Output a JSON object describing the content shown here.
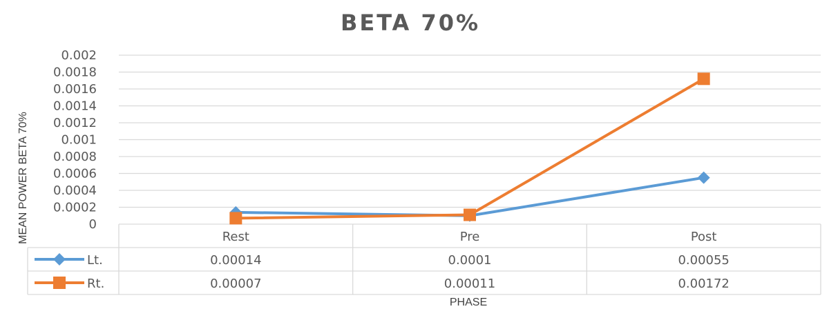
{
  "chart_data": {
    "type": "line",
    "title": "BETA 70%",
    "xlabel": "PHASE",
    "ylabel": "MEAN POWER BETA 70%",
    "categories": [
      "Rest",
      "Pre",
      "Post"
    ],
    "ylim": [
      0,
      0.002
    ],
    "yticks": [
      "0",
      "0.0002",
      "0.0004",
      "0.0006",
      "0.0008",
      "0.001",
      "0.0012",
      "0.0014",
      "0.0016",
      "0.0018",
      "0.002"
    ],
    "grid": true,
    "legend": "data-table",
    "series": [
      {
        "name": "Lt.",
        "color": "#5b9bd5",
        "marker": "diamond",
        "values": [
          0.00014,
          0.0001,
          0.00055
        ],
        "labels": [
          "0.00014",
          "0.0001",
          "0.00055"
        ]
      },
      {
        "name": "Rt.",
        "color": "#ed7d31",
        "marker": "square",
        "values": [
          7e-05,
          0.00011,
          0.00172
        ],
        "labels": [
          "0.00007",
          "0.00011",
          "0.00172"
        ]
      }
    ]
  }
}
